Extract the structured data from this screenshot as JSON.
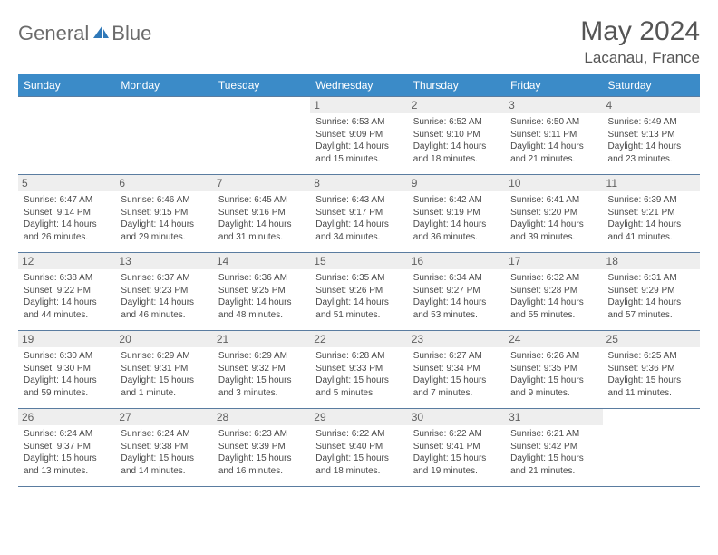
{
  "brand": {
    "name1": "General",
    "name2": "Blue"
  },
  "title": "May 2024",
  "location": "Lacanau, France",
  "colors": {
    "header_bg": "#3b8bc8",
    "header_text": "#ffffff",
    "daynum_bg": "#eeeeee",
    "text": "#4a4a4a",
    "rule": "#5a7ca0",
    "logo_gray": "#6b6b6b",
    "logo_blue": "#2f78b8"
  },
  "days": [
    "Sunday",
    "Monday",
    "Tuesday",
    "Wednesday",
    "Thursday",
    "Friday",
    "Saturday"
  ],
  "weeks": [
    [
      null,
      null,
      null,
      {
        "n": "1",
        "sr": "6:53 AM",
        "ss": "9:09 PM",
        "dl": "14 hours and 15 minutes."
      },
      {
        "n": "2",
        "sr": "6:52 AM",
        "ss": "9:10 PM",
        "dl": "14 hours and 18 minutes."
      },
      {
        "n": "3",
        "sr": "6:50 AM",
        "ss": "9:11 PM",
        "dl": "14 hours and 21 minutes."
      },
      {
        "n": "4",
        "sr": "6:49 AM",
        "ss": "9:13 PM",
        "dl": "14 hours and 23 minutes."
      }
    ],
    [
      {
        "n": "5",
        "sr": "6:47 AM",
        "ss": "9:14 PM",
        "dl": "14 hours and 26 minutes."
      },
      {
        "n": "6",
        "sr": "6:46 AM",
        "ss": "9:15 PM",
        "dl": "14 hours and 29 minutes."
      },
      {
        "n": "7",
        "sr": "6:45 AM",
        "ss": "9:16 PM",
        "dl": "14 hours and 31 minutes."
      },
      {
        "n": "8",
        "sr": "6:43 AM",
        "ss": "9:17 PM",
        "dl": "14 hours and 34 minutes."
      },
      {
        "n": "9",
        "sr": "6:42 AM",
        "ss": "9:19 PM",
        "dl": "14 hours and 36 minutes."
      },
      {
        "n": "10",
        "sr": "6:41 AM",
        "ss": "9:20 PM",
        "dl": "14 hours and 39 minutes."
      },
      {
        "n": "11",
        "sr": "6:39 AM",
        "ss": "9:21 PM",
        "dl": "14 hours and 41 minutes."
      }
    ],
    [
      {
        "n": "12",
        "sr": "6:38 AM",
        "ss": "9:22 PM",
        "dl": "14 hours and 44 minutes."
      },
      {
        "n": "13",
        "sr": "6:37 AM",
        "ss": "9:23 PM",
        "dl": "14 hours and 46 minutes."
      },
      {
        "n": "14",
        "sr": "6:36 AM",
        "ss": "9:25 PM",
        "dl": "14 hours and 48 minutes."
      },
      {
        "n": "15",
        "sr": "6:35 AM",
        "ss": "9:26 PM",
        "dl": "14 hours and 51 minutes."
      },
      {
        "n": "16",
        "sr": "6:34 AM",
        "ss": "9:27 PM",
        "dl": "14 hours and 53 minutes."
      },
      {
        "n": "17",
        "sr": "6:32 AM",
        "ss": "9:28 PM",
        "dl": "14 hours and 55 minutes."
      },
      {
        "n": "18",
        "sr": "6:31 AM",
        "ss": "9:29 PM",
        "dl": "14 hours and 57 minutes."
      }
    ],
    [
      {
        "n": "19",
        "sr": "6:30 AM",
        "ss": "9:30 PM",
        "dl": "14 hours and 59 minutes."
      },
      {
        "n": "20",
        "sr": "6:29 AM",
        "ss": "9:31 PM",
        "dl": "15 hours and 1 minute."
      },
      {
        "n": "21",
        "sr": "6:29 AM",
        "ss": "9:32 PM",
        "dl": "15 hours and 3 minutes."
      },
      {
        "n": "22",
        "sr": "6:28 AM",
        "ss": "9:33 PM",
        "dl": "15 hours and 5 minutes."
      },
      {
        "n": "23",
        "sr": "6:27 AM",
        "ss": "9:34 PM",
        "dl": "15 hours and 7 minutes."
      },
      {
        "n": "24",
        "sr": "6:26 AM",
        "ss": "9:35 PM",
        "dl": "15 hours and 9 minutes."
      },
      {
        "n": "25",
        "sr": "6:25 AM",
        "ss": "9:36 PM",
        "dl": "15 hours and 11 minutes."
      }
    ],
    [
      {
        "n": "26",
        "sr": "6:24 AM",
        "ss": "9:37 PM",
        "dl": "15 hours and 13 minutes."
      },
      {
        "n": "27",
        "sr": "6:24 AM",
        "ss": "9:38 PM",
        "dl": "15 hours and 14 minutes."
      },
      {
        "n": "28",
        "sr": "6:23 AM",
        "ss": "9:39 PM",
        "dl": "15 hours and 16 minutes."
      },
      {
        "n": "29",
        "sr": "6:22 AM",
        "ss": "9:40 PM",
        "dl": "15 hours and 18 minutes."
      },
      {
        "n": "30",
        "sr": "6:22 AM",
        "ss": "9:41 PM",
        "dl": "15 hours and 19 minutes."
      },
      {
        "n": "31",
        "sr": "6:21 AM",
        "ss": "9:42 PM",
        "dl": "15 hours and 21 minutes."
      },
      null
    ]
  ],
  "labels": {
    "sunrise": "Sunrise:",
    "sunset": "Sunset:",
    "daylight": "Daylight:"
  }
}
